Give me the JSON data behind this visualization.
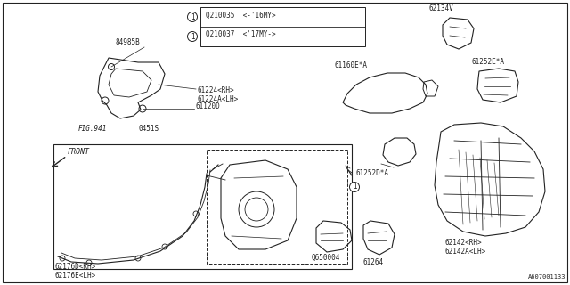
{
  "background_color": "#ffffff",
  "border_color": "#222222",
  "text_color": "#222222",
  "figure_width": 6.4,
  "figure_height": 3.2,
  "dpi": 100,
  "labels": {
    "top_box_1": "Q210035  <-'16MY>",
    "top_box_2": "Q210037  <'17MY->",
    "label_84985B": "84985B",
    "label_FIG941": "FIG.941",
    "label_0451S": "0451S",
    "label_61120D": "61120D",
    "label_61224": "61224<RH>\n61224A<LH>",
    "label_62134V": "62134V",
    "label_61160E": "61160E*A",
    "label_61252E": "61252E*A",
    "label_61252D": "61252D*A",
    "label_62142": "62142<RH>\n62142A<LH>",
    "label_62176": "62176D<RH>\n62176E<LH>",
    "label_Q650004": "Q650004",
    "label_61264": "61264",
    "label_FRONT": "FRONT",
    "label_bottom_ref": "A607001133"
  }
}
